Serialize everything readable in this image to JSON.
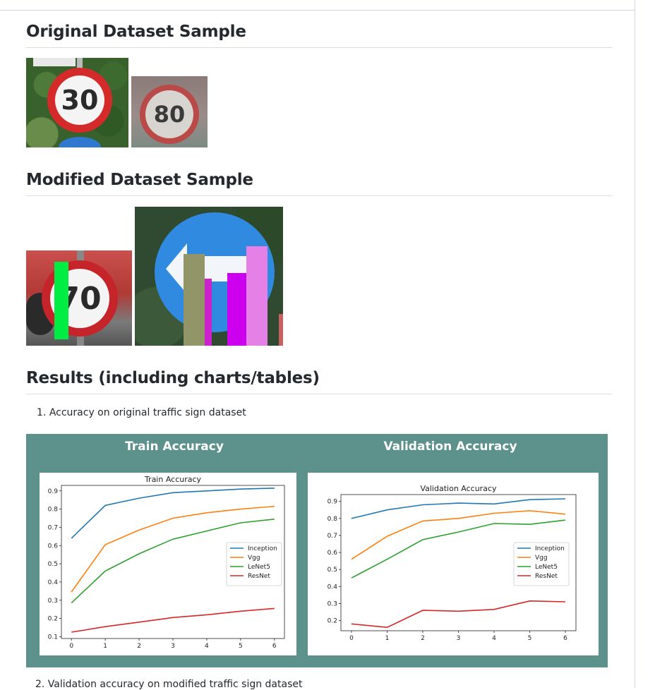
{
  "sections": {
    "original_heading": "Original Dataset Sample",
    "modified_heading": "Modified Dataset Sample",
    "results_heading": "Results (including charts/tables)"
  },
  "signs": {
    "s30": "30",
    "s80": "80",
    "s70": "70"
  },
  "results": {
    "item1_number": "1.",
    "item1_text": "Accuracy on original traffic sign dataset",
    "item2_text": "2. Validation accuracy on modified traffic sign dataset"
  },
  "panel": {
    "left_title": "Train Accuracy",
    "right_title": "Validation Accuracy",
    "background": "#5c918c"
  },
  "chart_data": [
    {
      "type": "line",
      "title": "Train Accuracy",
      "xlabel": "",
      "ylabel": "",
      "x": [
        0,
        1,
        2,
        3,
        4,
        5,
        6
      ],
      "ylim": [
        0.09,
        0.93
      ],
      "yticks": [
        "0.1",
        "0.2",
        "0.3",
        "0.4",
        "0.5",
        "0.6",
        "0.7",
        "0.8",
        "0.9"
      ],
      "xticks": [
        "0",
        "1",
        "2",
        "3",
        "4",
        "5",
        "6"
      ],
      "legend": "center-right",
      "series": [
        {
          "name": "Inception",
          "color": "#1f77b4",
          "values": [
            0.64,
            0.82,
            0.86,
            0.89,
            0.9,
            0.91,
            0.915
          ]
        },
        {
          "name": "Vgg",
          "color": "#ff7f0e",
          "values": [
            0.345,
            0.605,
            0.685,
            0.75,
            0.78,
            0.8,
            0.815
          ]
        },
        {
          "name": "LeNet5",
          "color": "#2ca02c",
          "values": [
            0.285,
            0.46,
            0.555,
            0.635,
            0.68,
            0.725,
            0.745
          ]
        },
        {
          "name": "ResNet",
          "color": "#d62728",
          "values": [
            0.125,
            0.155,
            0.18,
            0.205,
            0.22,
            0.24,
            0.255
          ]
        }
      ]
    },
    {
      "type": "line",
      "title": "Validation Accuracy",
      "xlabel": "",
      "ylabel": "",
      "x": [
        0,
        1,
        2,
        3,
        4,
        5,
        6
      ],
      "ylim": [
        0.14,
        0.94
      ],
      "yticks": [
        "0.2",
        "0.3",
        "0.4",
        "0.5",
        "0.6",
        "0.7",
        "0.8",
        "0.9"
      ],
      "xticks": [
        "0",
        "1",
        "2",
        "3",
        "4",
        "5",
        "6"
      ],
      "legend": "center-right",
      "series": [
        {
          "name": "Inception",
          "color": "#1f77b4",
          "values": [
            0.8,
            0.85,
            0.88,
            0.89,
            0.885,
            0.91,
            0.915
          ]
        },
        {
          "name": "Vgg",
          "color": "#ff7f0e",
          "values": [
            0.56,
            0.695,
            0.785,
            0.8,
            0.83,
            0.845,
            0.825
          ]
        },
        {
          "name": "LeNet5",
          "color": "#2ca02c",
          "values": [
            0.45,
            0.56,
            0.675,
            0.72,
            0.77,
            0.765,
            0.79
          ]
        },
        {
          "name": "ResNet",
          "color": "#d62728",
          "values": [
            0.18,
            0.16,
            0.26,
            0.255,
            0.265,
            0.315,
            0.31
          ]
        }
      ]
    }
  ]
}
